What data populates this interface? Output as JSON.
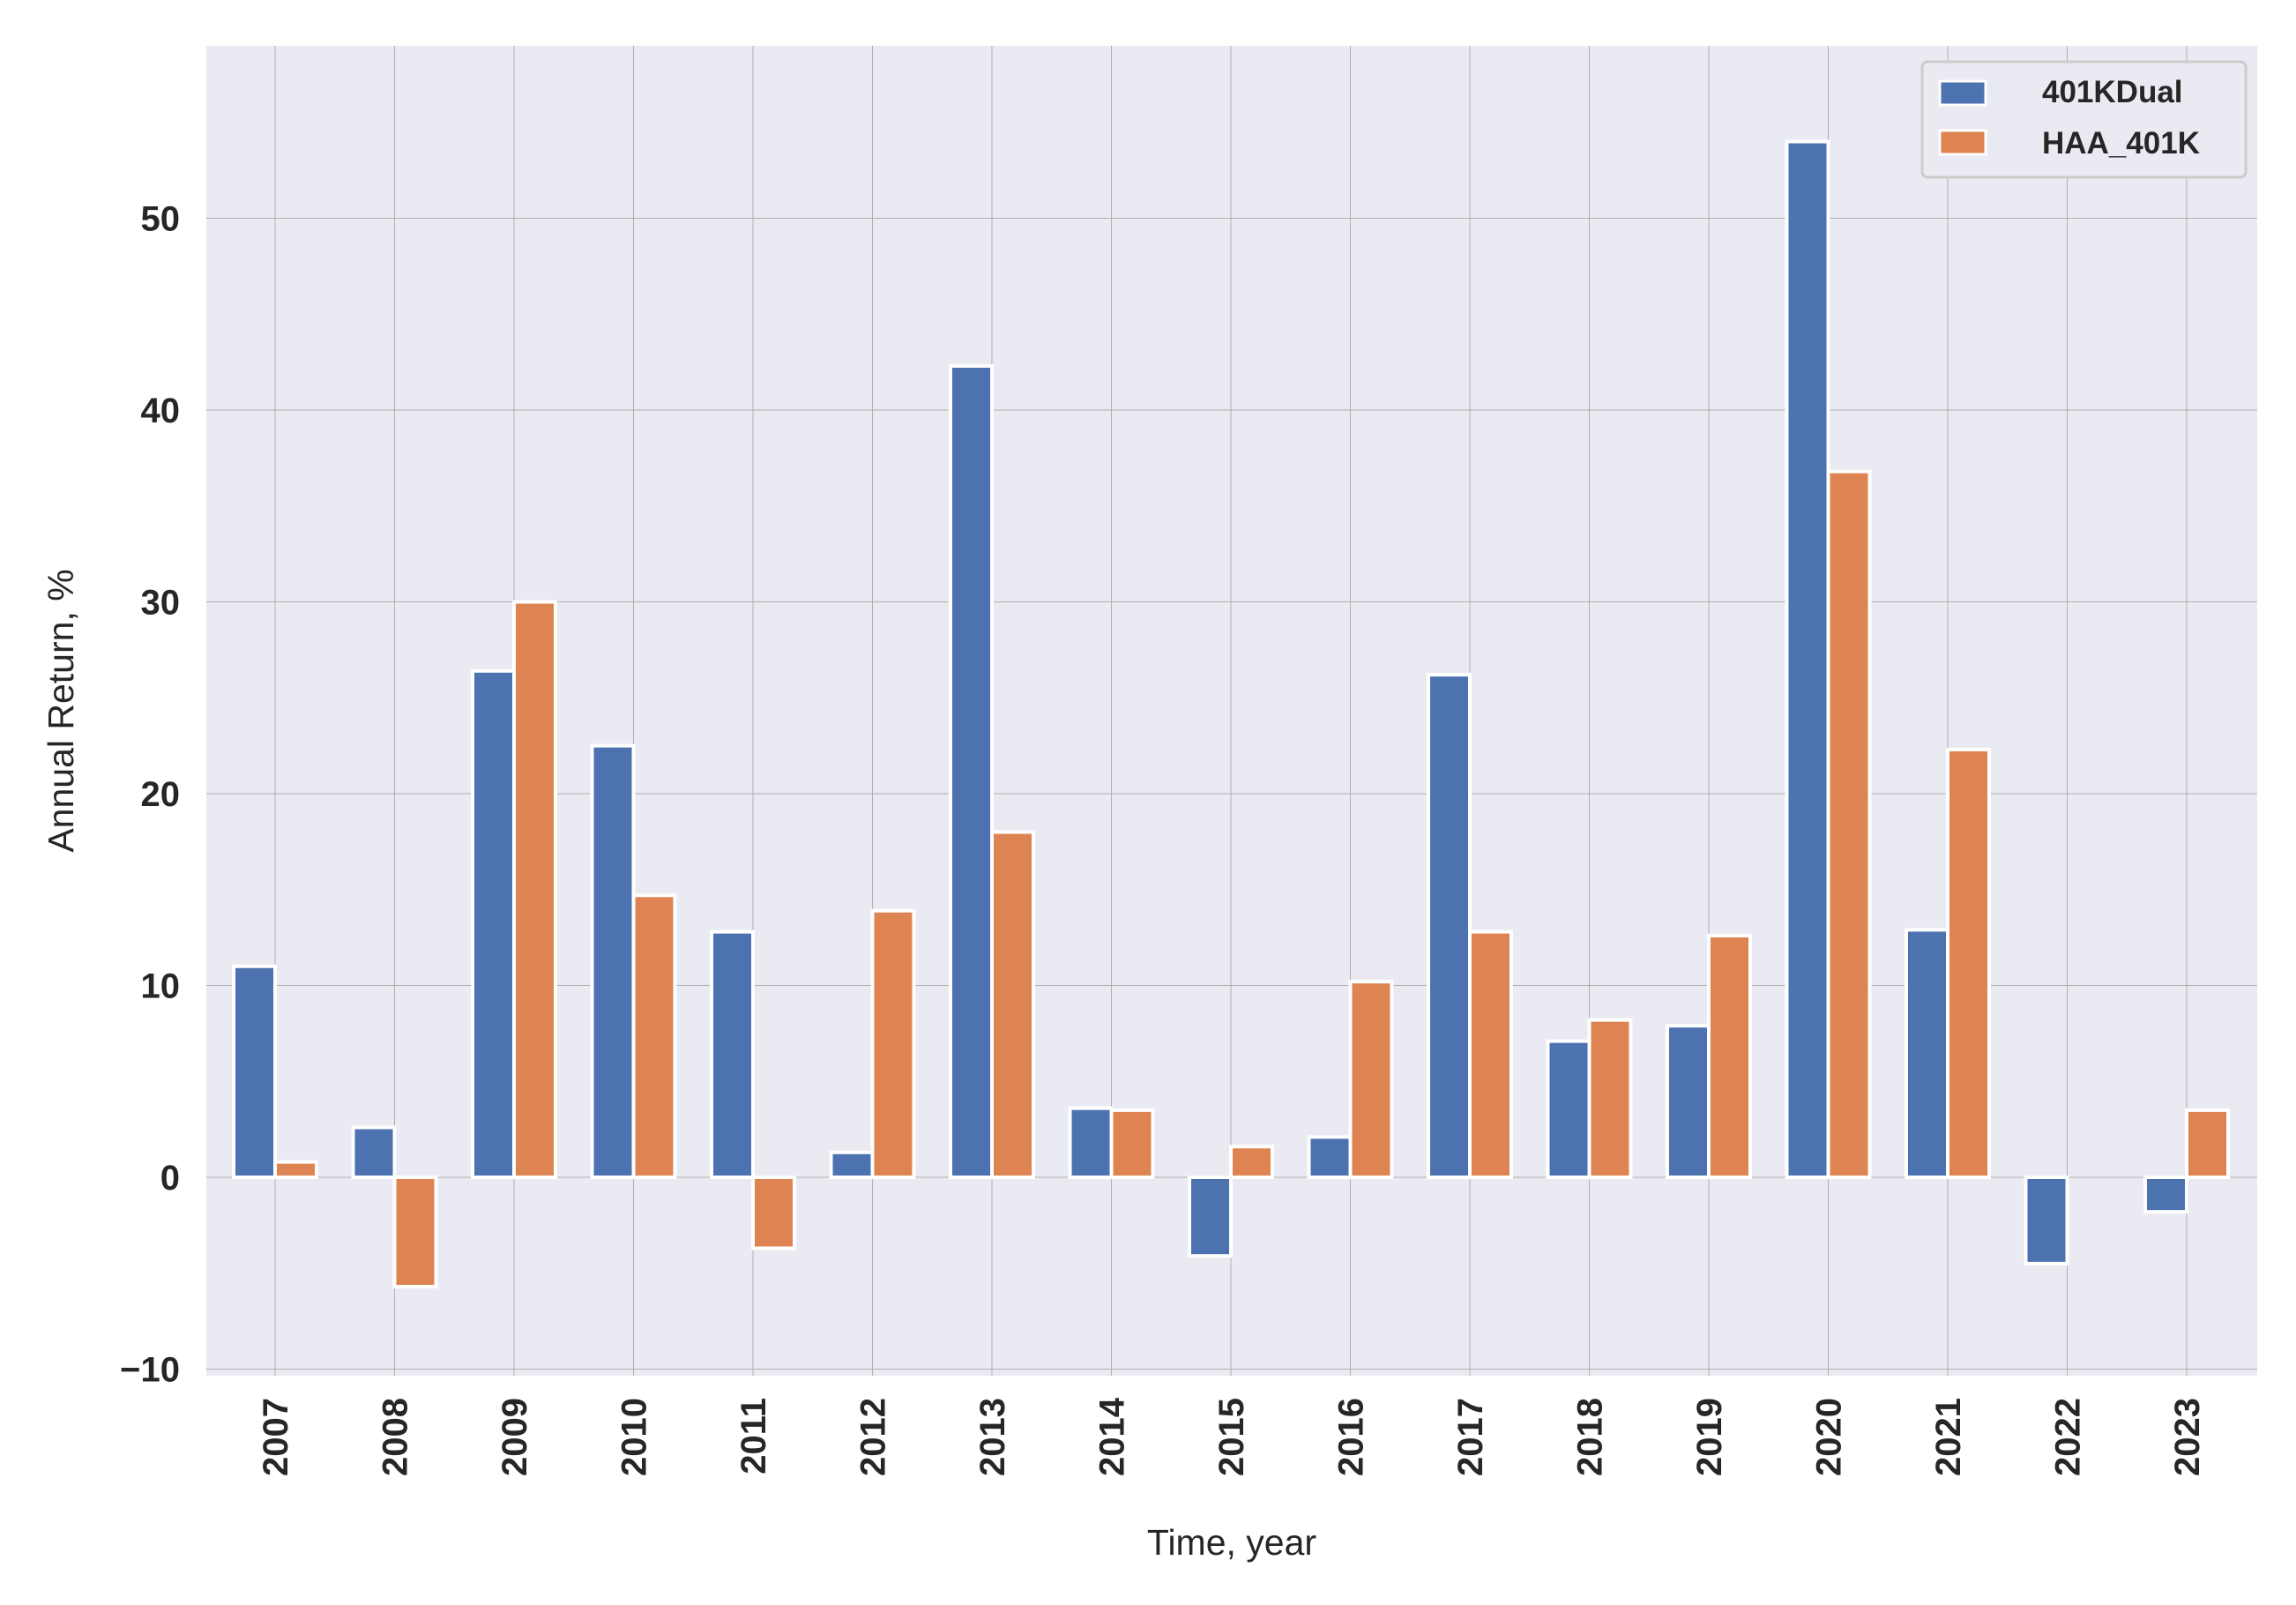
{
  "chart_data": {
    "type": "bar",
    "title": "",
    "xlabel": "Time, year",
    "ylabel": "Annual Return, %",
    "categories": [
      "2007",
      "2008",
      "2009",
      "2010",
      "2011",
      "2012",
      "2013",
      "2014",
      "2015",
      "2016",
      "2017",
      "2018",
      "2019",
      "2020",
      "2021",
      "2022",
      "2023"
    ],
    "series": [
      {
        "name": "401KDual",
        "color": "#4c72b0",
        "values": [
          11.0,
          2.6,
          26.4,
          22.5,
          12.8,
          1.3,
          42.3,
          3.6,
          -4.1,
          2.1,
          26.2,
          7.1,
          7.9,
          54.0,
          12.9,
          -4.5,
          -1.8
        ]
      },
      {
        "name": "HAA_401K",
        "color": "#dd8452",
        "values": [
          0.8,
          -5.7,
          30.0,
          14.7,
          -3.7,
          13.9,
          18.0,
          3.5,
          1.6,
          10.2,
          12.8,
          8.2,
          12.6,
          36.8,
          22.3,
          0.0,
          3.5
        ]
      }
    ],
    "ylim": [
      -10.5,
      59
    ],
    "yticks": [
      -10,
      0,
      10,
      20,
      30,
      40,
      50
    ],
    "ytick_labels": [
      "−10",
      "0",
      "10",
      "20",
      "30",
      "40",
      "50"
    ],
    "grid": true,
    "legend_position": "top-right",
    "colors": {
      "plot_background": "#eaeaf2",
      "grid": "#b0b0b0",
      "bar_edge": "#ffffff"
    }
  }
}
